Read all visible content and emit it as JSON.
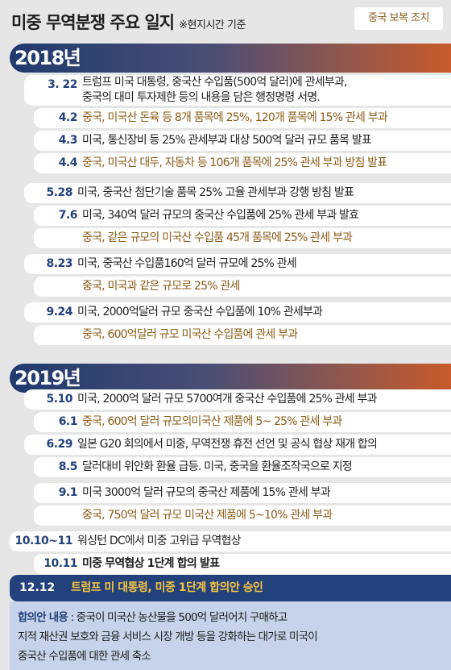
{
  "header": {
    "title": "미중 무역분쟁 주요 일지",
    "note": "※현지시간 기준",
    "legend": "중국 보복 조치"
  },
  "years": [
    "2018년",
    "2019년"
  ],
  "events_2018": [
    {
      "date": "3. 22",
      "lines": [
        "트럼프 미국 대통령, 중국산 수입품(500억 달러)에 관세부과,",
        "중국의 대미 투자제한 등의 내용을 담은 행정명령 서명."
      ],
      "china": false
    },
    {
      "date": "4.2",
      "lines": [
        "중국, 미국산 돈육 등 8개 품목에 25%, 120개 품목에 15% 관세 부과"
      ],
      "china": true
    },
    {
      "date": "4.3",
      "lines": [
        "미국, 통신장비 등 25% 관세부과 대상 500억 달러 규모 품목 발표"
      ],
      "china": false
    },
    {
      "date": "4.4",
      "lines": [
        "중국, 미국산 대두, 자동차 등 106개 품목에 25% 관세 부과 방침 발표"
      ],
      "china": true
    },
    {
      "date": "5.28",
      "lines": [
        "미국, 중국산 첨단기술 품목 25% 고율 관세부과 강행 방침 발표"
      ],
      "china": false
    },
    {
      "date": "7.6",
      "lines": [
        "미국, 340억 달러 규모의 중국산 수입품에 25% 관세 부과 발효"
      ],
      "china": false
    },
    {
      "date": "",
      "lines": [
        "중국, 같은 규모의 미국산 수입품 45개 품목에 25% 관세 부과"
      ],
      "china": true
    },
    {
      "date": "8.23",
      "lines": [
        "미국, 중국산 수입품160억 달러 규모에 25% 관세"
      ],
      "china": false
    },
    {
      "date": "",
      "lines": [
        "중국, 미국과 같은 규모로 25% 관세"
      ],
      "china": true
    },
    {
      "date": "9.24",
      "lines": [
        "미국, 2000억달러 규모 중국산 수입품에 10% 관세부과"
      ],
      "china": false
    },
    {
      "date": "",
      "lines": [
        "중국, 600억달러 규모 미국산 수입품에 관세 부과"
      ],
      "china": true
    }
  ],
  "events_2019": [
    {
      "date": "5.10",
      "lines": [
        "미국, 2000억 달러 규모 5700여개 중국산 수입품에 25% 관세 부과"
      ],
      "china": false
    },
    {
      "date": "6.1",
      "lines": [
        "중국, 600억 달러 규모의미국산 제품에 5~ 25% 관세 부과"
      ],
      "china": true
    },
    {
      "date": "6.29",
      "lines": [
        "일본 G20 회의에서 미중, 무역전쟁 휴전 선언 및 공식 협상 재개 합의"
      ],
      "china": false
    },
    {
      "date": "8.5",
      "lines": [
        "달러대비 위안화 환율 급등. 미국, 중국을 환율조작국으로 지정"
      ],
      "china": false
    },
    {
      "date": "9.1",
      "lines": [
        "미국 3000억 달러 규모의 중국산 제품에 15% 관세 부과"
      ],
      "china": false
    },
    {
      "date": "",
      "lines": [
        "중국, 750억 달러 규모 미국산 제품에 5~10% 관세 부과"
      ],
      "china": true
    },
    {
      "date": "10.10~11",
      "lines": [
        "워싱턴 DC에서 미중 고위급 무역협상"
      ],
      "china": false
    },
    {
      "date": "10.11",
      "lines": [
        "미중 무역협상 1단계 합의 발표"
      ],
      "china": false,
      "bold": true
    }
  ],
  "highlight": {
    "date": "12.12",
    "text": "트럼프 미 대통령, 미중 1단계 합의안 승인"
  },
  "summary": {
    "label": "합의안 내용",
    "line1": " : 중국이 미국산 농산물을 500억 달러어치 구매하고",
    "line2": "지적 재산권 보호와 금융 서비스 시장 개방 등을 강화하는 대가로 미국이",
    "line3": "중국산 수입품에 대한 관세 축소"
  },
  "colors": {
    "navy": "#23417a",
    "china_text": "#8c5c17",
    "highlight_text": "#f4c542",
    "summary_bg": "#c6d3ea"
  }
}
